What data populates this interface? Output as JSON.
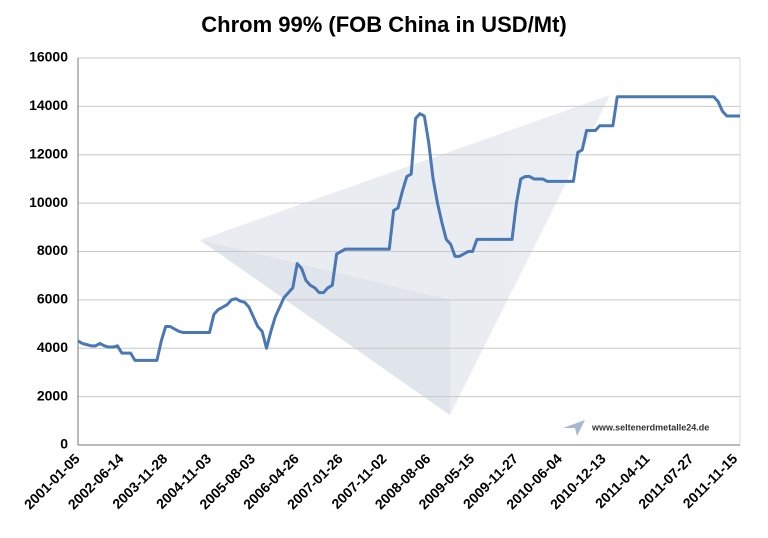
{
  "chart_data": {
    "type": "line",
    "title": "Chrom 99% (FOB China in USD/Mt)",
    "watermark": "www.seltenerdmetalle24.de",
    "categories": [
      "2001-01-05",
      null,
      null,
      null,
      null,
      null,
      null,
      null,
      null,
      null,
      "2002-06-14",
      null,
      null,
      null,
      null,
      null,
      null,
      null,
      null,
      null,
      "2003-11-28",
      null,
      null,
      null,
      null,
      null,
      null,
      null,
      null,
      null,
      "2004-11-03",
      null,
      null,
      null,
      null,
      null,
      null,
      null,
      null,
      null,
      "2005-08-03",
      null,
      null,
      null,
      null,
      null,
      null,
      null,
      null,
      null,
      "2006-04-26",
      null,
      null,
      null,
      null,
      null,
      null,
      null,
      null,
      null,
      "2007-01-26",
      null,
      null,
      null,
      null,
      null,
      null,
      null,
      null,
      null,
      "2007-11-02",
      null,
      null,
      null,
      null,
      null,
      null,
      null,
      null,
      null,
      "2008-08-06",
      null,
      null,
      null,
      null,
      null,
      null,
      null,
      null,
      null,
      "2009-05-15",
      null,
      null,
      null,
      null,
      null,
      null,
      null,
      null,
      null,
      "2009-11-27",
      null,
      null,
      null,
      null,
      null,
      null,
      null,
      null,
      null,
      "2010-06-04",
      null,
      null,
      null,
      null,
      null,
      null,
      null,
      null,
      null,
      "2010-12-13",
      null,
      null,
      null,
      null,
      null,
      null,
      null,
      null,
      null,
      "2011-04-11",
      null,
      null,
      null,
      null,
      null,
      null,
      null,
      null,
      null,
      "2011-07-27",
      null,
      null,
      null,
      null,
      null,
      null,
      null,
      null,
      null,
      "2011-11-15",
      null
    ],
    "values": [
      4300,
      4200,
      4150,
      4100,
      4100,
      4200,
      4100,
      4050,
      4050,
      4100,
      3800,
      3800,
      3800,
      3500,
      3500,
      3500,
      3500,
      3500,
      3500,
      4300,
      4900,
      4900,
      4800,
      4700,
      4650,
      4650,
      4650,
      4650,
      4650,
      4650,
      4650,
      5400,
      5600,
      5700,
      5800,
      6000,
      6050,
      5950,
      5900,
      5700,
      5300,
      4900,
      4700,
      4000,
      4700,
      5300,
      5700,
      6100,
      6300,
      6500,
      7500,
      7300,
      6800,
      6600,
      6500,
      6300,
      6300,
      6500,
      6600,
      7900,
      8000,
      8100,
      8100,
      8100,
      8100,
      8100,
      8100,
      8100,
      8100,
      8100,
      8100,
      8100,
      9700,
      9800,
      10500,
      11100,
      11200,
      13500,
      13700,
      13600,
      12500,
      11000,
      10000,
      9200,
      8500,
      8300,
      7800,
      7800,
      7900,
      8000,
      8000,
      8500,
      8500,
      8500,
      8500,
      8500,
      8500,
      8500,
      8500,
      8500,
      10000,
      11000,
      11100,
      11100,
      11000,
      11000,
      11000,
      10900,
      10900,
      10900,
      10900,
      10900,
      10900,
      10900,
      12100,
      12200,
      13000,
      13000,
      13000,
      13200,
      13200,
      13200,
      13200,
      14400,
      14400,
      14400,
      14400,
      14400,
      14400,
      14400,
      14400,
      14400,
      14400,
      14400,
      14400,
      14400,
      14400,
      14400,
      14400,
      14400,
      14400,
      14400,
      14400,
      14400,
      14400,
      14400,
      14200,
      13800,
      13600,
      13600,
      13600,
      13600
    ],
    "color": "#4a78b4",
    "ylim": [
      0,
      16000
    ],
    "yticks": [
      0,
      2000,
      4000,
      6000,
      8000,
      10000,
      12000,
      14000,
      16000
    ],
    "grid": true
  }
}
